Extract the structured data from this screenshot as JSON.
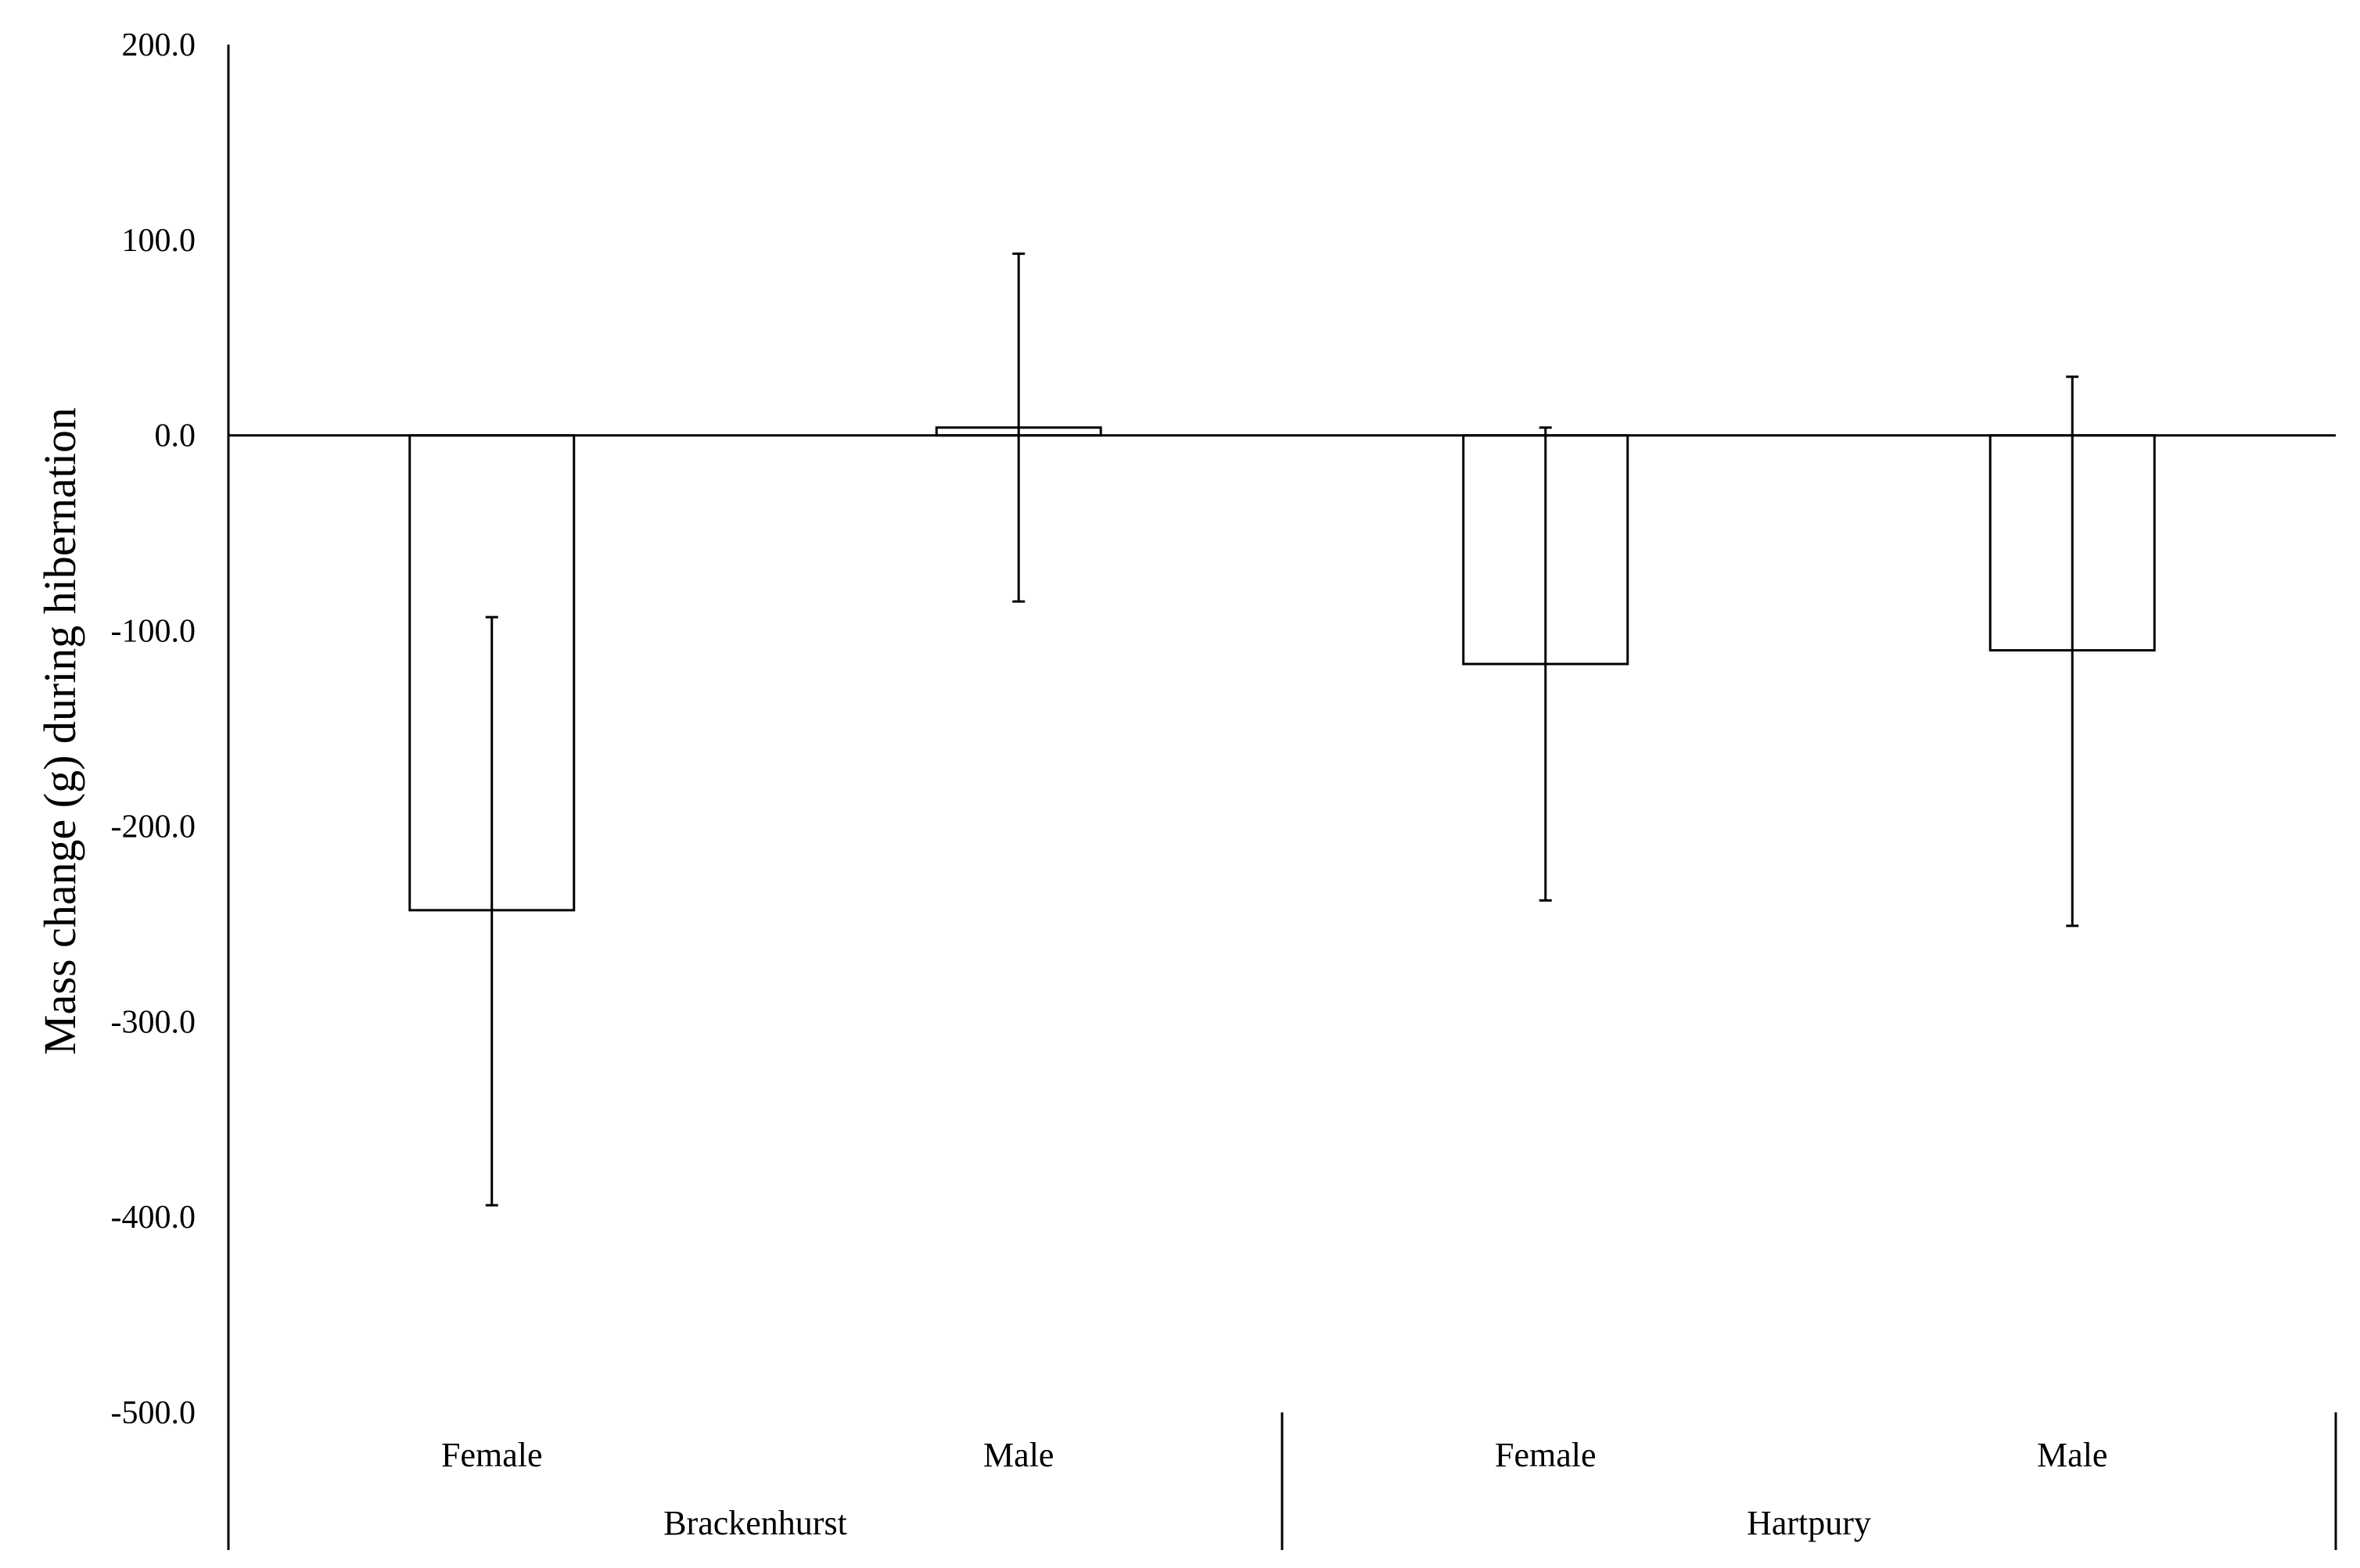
{
  "chart_data": {
    "type": "bar",
    "ylabel": "Mass change (g) during hibernation",
    "ylim": [
      -500,
      200
    ],
    "yticks": [
      200,
      100,
      0,
      -100,
      -200,
      -300,
      -400,
      -500
    ],
    "ytick_labels": [
      "200.0",
      "100.0",
      "0.0",
      "-100.0",
      "-200.0",
      "-300.0",
      "-400.0",
      "-500.0"
    ],
    "grid": false,
    "legend": "none",
    "groups": [
      {
        "name": "Brackenhurst",
        "bars": [
          {
            "category": "Female",
            "value": -243,
            "err_upper": -93,
            "err_lower": -394
          },
          {
            "category": "Male",
            "value": 4,
            "err_upper": 93,
            "err_lower": -85
          }
        ]
      },
      {
        "name": "Hartpury",
        "bars": [
          {
            "category": "Female",
            "value": -117,
            "err_upper": 4,
            "err_lower": -238
          },
          {
            "category": "Male",
            "value": -110,
            "err_upper": 30,
            "err_lower": -251
          }
        ]
      }
    ],
    "colors": {
      "bar_fill": "#ffffff",
      "stroke": "#000000"
    }
  }
}
